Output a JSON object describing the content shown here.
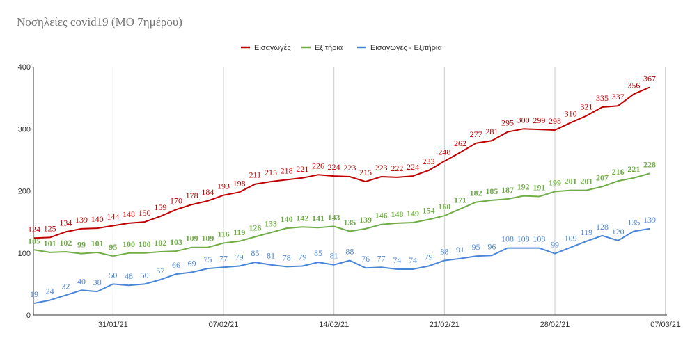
{
  "chart_data": {
    "type": "line",
    "title": "Νοσηλείες covid19 (ΜΟ 7ημέρου)",
    "ylim": [
      0,
      400
    ],
    "yticks": [
      0,
      100,
      200,
      300,
      400
    ],
    "xtick_labels": [
      "31/01/21",
      "07/02/21",
      "14/02/21",
      "21/02/21",
      "28/02/21",
      "07/03/21"
    ],
    "xtick_indices": [
      5,
      12,
      19,
      26,
      33,
      40
    ],
    "grid": "vertical",
    "legend": "top-center",
    "series": [
      {
        "name": "Εισαγωγές",
        "color": "#c00000",
        "bold": false,
        "values": [
          124,
          125,
          134,
          139,
          140,
          144,
          148,
          150,
          159,
          170,
          178,
          184,
          193,
          198,
          211,
          215,
          218,
          221,
          226,
          224,
          223,
          215,
          223,
          222,
          224,
          233,
          248,
          262,
          277,
          281,
          295,
          300,
          299,
          298,
          310,
          321,
          335,
          337,
          356,
          367
        ]
      },
      {
        "name": "Εξιτήρια",
        "color": "#70ad47",
        "bold": true,
        "values": [
          105,
          101,
          102,
          99,
          101,
          95,
          100,
          100,
          102,
          103,
          109,
          109,
          116,
          119,
          126,
          133,
          140,
          142,
          141,
          143,
          135,
          139,
          146,
          148,
          149,
          154,
          160,
          171,
          182,
          185,
          187,
          192,
          191,
          199,
          201,
          201,
          207,
          216,
          221,
          228
        ]
      },
      {
        "name": "Εισαγωγές - Εξιτήρια",
        "color": "#4a86d8",
        "bold": false,
        "values": [
          19,
          24,
          32,
          40,
          38,
          50,
          48,
          50,
          57,
          66,
          69,
          75,
          77,
          79,
          85,
          81,
          78,
          79,
          85,
          81,
          88,
          76,
          77,
          74,
          74,
          79,
          88,
          91,
          95,
          96,
          108,
          108,
          108,
          99,
          109,
          119,
          128,
          120,
          135,
          139
        ]
      }
    ]
  }
}
